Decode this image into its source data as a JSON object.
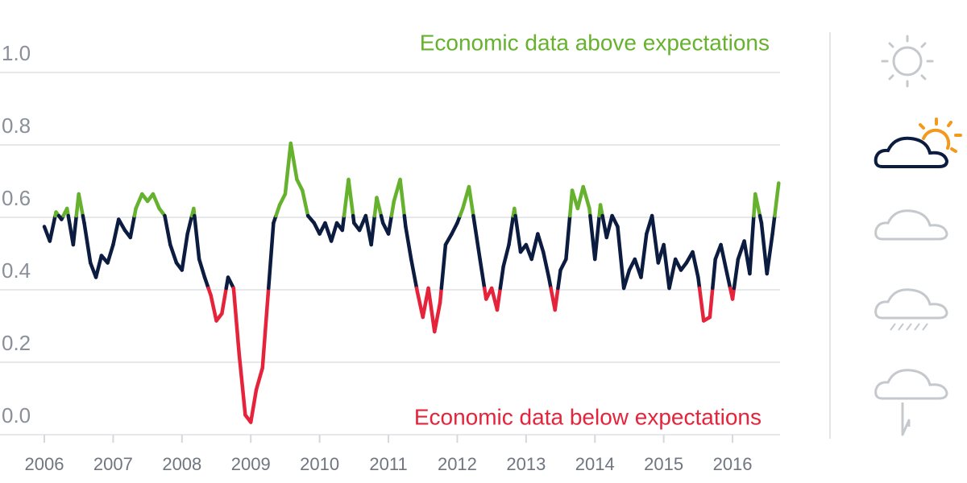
{
  "chart_data": {
    "type": "line",
    "annotations": [
      "Economic data above expectations",
      "Economic data below expectations"
    ],
    "annotation_colors": [
      "#66b22e",
      "#e5243b"
    ],
    "thresholds": [
      0.4,
      0.6
    ],
    "colors": [
      "#e5243b",
      "#0c1c40",
      "#66b22e"
    ],
    "x": [
      2006,
      2006.08,
      2006.17,
      2006.25,
      2006.33,
      2006.42,
      2006.5,
      2006.58,
      2006.67,
      2006.75,
      2006.83,
      2006.92,
      2007,
      2007.08,
      2007.17,
      2007.25,
      2007.33,
      2007.42,
      2007.5,
      2007.58,
      2007.67,
      2007.75,
      2007.83,
      2007.92,
      2008,
      2008.08,
      2008.17,
      2008.25,
      2008.33,
      2008.42,
      2008.5,
      2008.58,
      2008.67,
      2008.75,
      2008.83,
      2008.92,
      2009,
      2009.08,
      2009.17,
      2009.25,
      2009.33,
      2009.42,
      2009.5,
      2009.58,
      2009.67,
      2009.75,
      2009.83,
      2009.92,
      2010,
      2010.08,
      2010.17,
      2010.25,
      2010.33,
      2010.42,
      2010.5,
      2010.58,
      2010.67,
      2010.75,
      2010.83,
      2010.92,
      2011,
      2011.08,
      2011.17,
      2011.25,
      2011.33,
      2011.42,
      2011.5,
      2011.58,
      2011.67,
      2011.75,
      2011.83,
      2011.92,
      2012,
      2012.08,
      2012.17,
      2012.25,
      2012.33,
      2012.42,
      2012.5,
      2012.58,
      2012.67,
      2012.75,
      2012.83,
      2012.92,
      2013,
      2013.08,
      2013.17,
      2013.25,
      2013.33,
      2013.42,
      2013.5,
      2013.58,
      2013.67,
      2013.75,
      2013.83,
      2013.92,
      2014,
      2014.08,
      2014.17,
      2014.25,
      2014.33,
      2014.42,
      2014.5,
      2014.58,
      2014.67,
      2014.75,
      2014.83,
      2014.92,
      2015,
      2015.08,
      2015.17,
      2015.25,
      2015.33,
      2015.42,
      2015.5,
      2015.58,
      2015.67,
      2015.75,
      2015.83,
      2015.92,
      2016,
      2016.08,
      2016.17,
      2016.25,
      2016.33,
      2016.42,
      2016.5,
      2016.58,
      2016.67
    ],
    "values": [
      0.57,
      0.53,
      0.61,
      0.59,
      0.62,
      0.52,
      0.66,
      0.58,
      0.47,
      0.43,
      0.49,
      0.47,
      0.52,
      0.59,
      0.56,
      0.54,
      0.62,
      0.66,
      0.64,
      0.66,
      0.62,
      0.6,
      0.52,
      0.47,
      0.45,
      0.55,
      0.62,
      0.48,
      0.43,
      0.38,
      0.31,
      0.33,
      0.43,
      0.4,
      0.22,
      0.05,
      0.03,
      0.12,
      0.18,
      0.38,
      0.58,
      0.63,
      0.66,
      0.8,
      0.7,
      0.67,
      0.6,
      0.58,
      0.55,
      0.58,
      0.53,
      0.58,
      0.56,
      0.7,
      0.58,
      0.56,
      0.6,
      0.52,
      0.65,
      0.58,
      0.55,
      0.64,
      0.7,
      0.57,
      0.48,
      0.39,
      0.32,
      0.4,
      0.28,
      0.36,
      0.52,
      0.55,
      0.58,
      0.62,
      0.68,
      0.58,
      0.48,
      0.37,
      0.4,
      0.34,
      0.46,
      0.52,
      0.62,
      0.5,
      0.52,
      0.48,
      0.55,
      0.5,
      0.43,
      0.34,
      0.45,
      0.48,
      0.67,
      0.62,
      0.68,
      0.62,
      0.48,
      0.63,
      0.54,
      0.6,
      0.57,
      0.4,
      0.45,
      0.48,
      0.43,
      0.55,
      0.6,
      0.47,
      0.52,
      0.4,
      0.48,
      0.45,
      0.47,
      0.5,
      0.43,
      0.31,
      0.32,
      0.48,
      0.52,
      0.44,
      0.37,
      0.48,
      0.53,
      0.44,
      0.66,
      0.58,
      0.44,
      0.55,
      0.69
    ],
    "xlim": [
      2006,
      2016.69
    ],
    "xticks": [
      2006,
      2007,
      2008,
      2009,
      2010,
      2011,
      2012,
      2013,
      2014,
      2015,
      2016
    ],
    "ylim": [
      0,
      1
    ],
    "yticks": [
      {
        "value": 0,
        "label": "0.0"
      },
      0.2,
      0.4,
      0.6,
      0.8,
      {
        "value": 1,
        "label": "1.0"
      }
    ],
    "grid": true
  }
}
